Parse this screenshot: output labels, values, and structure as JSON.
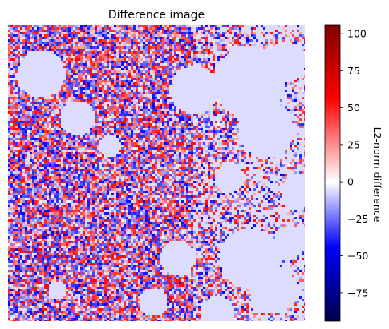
{
  "chart_data": {
    "type": "heatmap",
    "title": "Difference image",
    "colorbar": {
      "label": "L2-norm difference",
      "colormap": "seismic",
      "range": [
        -94,
        106
      ],
      "ticks": [
        -75,
        -50,
        -25,
        0,
        25,
        50,
        75,
        100
      ],
      "tick_labels": [
        "−75",
        "−50",
        "−25",
        "0",
        "25",
        "50",
        "75",
        "100"
      ]
    },
    "axes_visible": false,
    "description_of_field": "dense high-frequency positive/negative noise over most of the image with smooth near-zero (light lavender) regions toward the right and top-right"
  },
  "colors": {
    "zero": "#dcdcff",
    "neg_max": "#00004c",
    "pos_max": "#800000"
  }
}
